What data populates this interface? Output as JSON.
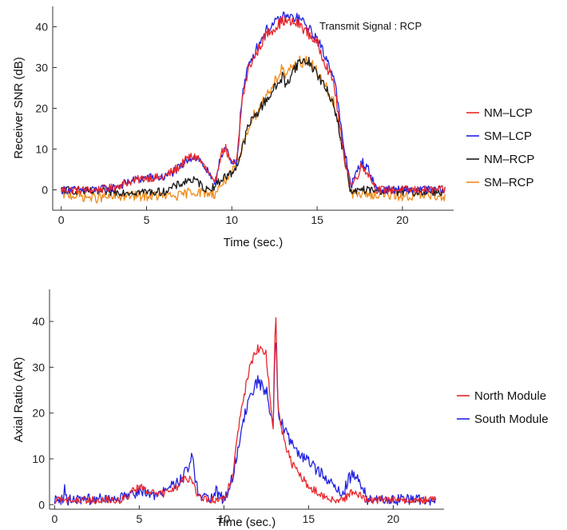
{
  "chart_data": [
    {
      "type": "line",
      "title": "",
      "annotation": "Transmit Signal : RCP",
      "xlabel": "Time (sec.)",
      "ylabel": "Receiver SNR (dB)",
      "xlim": [
        -0.5,
        23
      ],
      "ylim": [
        -5,
        45
      ],
      "xticks": [
        0,
        5,
        10,
        15,
        20
      ],
      "yticks": [
        0,
        10,
        20,
        30,
        40
      ],
      "grid": false,
      "legend_position": "right",
      "series": [
        {
          "name": "NM–LCP",
          "color": "#e8262a",
          "noise": 1.0,
          "points": [
            [
              0,
              0
            ],
            [
              2,
              0
            ],
            [
              3,
              0.5
            ],
            [
              4,
              2
            ],
            [
              5,
              3
            ],
            [
              6,
              3
            ],
            [
              7,
              6
            ],
            [
              7.5,
              8
            ],
            [
              8,
              8
            ],
            [
              8.5,
              5
            ],
            [
              9,
              1
            ],
            [
              9.3,
              8
            ],
            [
              9.6,
              10.5
            ],
            [
              10,
              6
            ],
            [
              10.3,
              7
            ],
            [
              10.6,
              22
            ],
            [
              11,
              30
            ],
            [
              12,
              38
            ],
            [
              13,
              41.5
            ],
            [
              14,
              40.5
            ],
            [
              15,
              36
            ],
            [
              16,
              26
            ],
            [
              16.5,
              10
            ],
            [
              17,
              1
            ],
            [
              17.3,
              3
            ],
            [
              17.6,
              6
            ],
            [
              18,
              4
            ],
            [
              18.5,
              0
            ],
            [
              20,
              0
            ],
            [
              22.5,
              0
            ]
          ]
        },
        {
          "name": "SM–LCP",
          "color": "#2121e0",
          "noise": 1.0,
          "points": [
            [
              0,
              0
            ],
            [
              2,
              0
            ],
            [
              3,
              0.5
            ],
            [
              4,
              2
            ],
            [
              5,
              3
            ],
            [
              6,
              3
            ],
            [
              7,
              5.5
            ],
            [
              7.5,
              8
            ],
            [
              8,
              8
            ],
            [
              8.5,
              5
            ],
            [
              9,
              1
            ],
            [
              9.3,
              8
            ],
            [
              9.6,
              10.5
            ],
            [
              10,
              6
            ],
            [
              10.3,
              7
            ],
            [
              10.6,
              23
            ],
            [
              11,
              31
            ],
            [
              12,
              39
            ],
            [
              13,
              42.5
            ],
            [
              14,
              42
            ],
            [
              15,
              37
            ],
            [
              16,
              28
            ],
            [
              16.5,
              12
            ],
            [
              17,
              1
            ],
            [
              17.3,
              4
            ],
            [
              17.6,
              7
            ],
            [
              18,
              5
            ],
            [
              18.5,
              0
            ],
            [
              20,
              0
            ],
            [
              22.5,
              0
            ]
          ]
        },
        {
          "name": "NM–RCP",
          "color": "#1a1a1a",
          "noise": 1.0,
          "points": [
            [
              0,
              0
            ],
            [
              2,
              -0.5
            ],
            [
              4,
              -0.5
            ],
            [
              6,
              -0.5
            ],
            [
              7,
              1.5
            ],
            [
              7.5,
              2.5
            ],
            [
              8,
              2
            ],
            [
              8.5,
              0
            ],
            [
              9,
              1
            ],
            [
              9.5,
              3
            ],
            [
              10,
              4
            ],
            [
              10.4,
              7
            ],
            [
              11,
              16
            ],
            [
              12,
              22
            ],
            [
              12.7,
              26
            ],
            [
              13,
              28
            ],
            [
              13.2,
              25
            ],
            [
              13.5,
              29
            ],
            [
              14,
              31.5
            ],
            [
              14.5,
              31.5
            ],
            [
              15,
              28.5
            ],
            [
              16,
              21
            ],
            [
              16.5,
              10
            ],
            [
              17,
              -1
            ],
            [
              17.5,
              0
            ],
            [
              18,
              0
            ],
            [
              20,
              -0.5
            ],
            [
              22.5,
              -0.5
            ]
          ]
        },
        {
          "name": "SM–RCP",
          "color": "#f08c1c",
          "noise": 1.2,
          "points": [
            [
              0,
              -1
            ],
            [
              2,
              -2
            ],
            [
              4,
              -1.5
            ],
            [
              6,
              -1.5
            ],
            [
              7,
              -1.5
            ],
            [
              7.5,
              -0.5
            ],
            [
              8,
              -0.5
            ],
            [
              9,
              -1
            ],
            [
              9.5,
              2
            ],
            [
              10,
              4
            ],
            [
              10.4,
              7
            ],
            [
              11,
              16
            ],
            [
              12,
              23
            ],
            [
              12.7,
              28
            ],
            [
              13,
              30
            ],
            [
              13.2,
              27
            ],
            [
              13.5,
              30
            ],
            [
              14,
              31.5
            ],
            [
              14.5,
              31.5
            ],
            [
              15,
              29
            ],
            [
              16,
              21
            ],
            [
              16.5,
              10
            ],
            [
              17,
              -1
            ],
            [
              17.5,
              -1
            ],
            [
              18,
              -1
            ],
            [
              20,
              -1.5
            ],
            [
              22.5,
              -1.5
            ]
          ]
        }
      ]
    },
    {
      "type": "line",
      "title": "",
      "xlabel": "Time (sec.)",
      "ylabel": "Axial Ratio (AR)",
      "xlim": [
        -0.3,
        23
      ],
      "ylim": [
        -1,
        47
      ],
      "xticks": [
        0,
        5,
        10,
        15,
        20
      ],
      "yticks": [
        0,
        10,
        20,
        30,
        40
      ],
      "grid": false,
      "legend_position": "right",
      "series": [
        {
          "name": "North Module",
          "color": "#e8262a",
          "noise": 0.8,
          "points": [
            [
              0,
              1
            ],
            [
              4,
              1
            ],
            [
              5,
              4
            ],
            [
              5.5,
              3
            ],
            [
              6,
              2
            ],
            [
              7,
              3
            ],
            [
              7.5,
              5
            ],
            [
              8,
              6
            ],
            [
              8.5,
              2
            ],
            [
              9,
              1
            ],
            [
              10,
              1
            ],
            [
              10.5,
              6
            ],
            [
              11,
              20
            ],
            [
              11.5,
              30
            ],
            [
              12,
              34
            ],
            [
              12.5,
              33
            ],
            [
              12.8,
              20
            ],
            [
              12.9,
              15
            ],
            [
              13.05,
              44
            ],
            [
              13.2,
              20
            ],
            [
              13.5,
              15
            ],
            [
              14,
              9
            ],
            [
              15,
              4
            ],
            [
              16,
              1.5
            ],
            [
              17,
              1
            ],
            [
              17.3,
              2
            ],
            [
              17.6,
              3
            ],
            [
              18,
              2
            ],
            [
              18.5,
              1
            ],
            [
              20,
              1
            ],
            [
              22.5,
              1
            ]
          ]
        },
        {
          "name": "South Module",
          "color": "#2121e0",
          "noise": 1.2,
          "points": [
            [
              0,
              1
            ],
            [
              0.5,
              1
            ],
            [
              0.6,
              3.5
            ],
            [
              0.7,
              1
            ],
            [
              4,
              1.5
            ],
            [
              5,
              3
            ],
            [
              6,
              2
            ],
            [
              7,
              4
            ],
            [
              7.5,
              6
            ],
            [
              8,
              8
            ],
            [
              8.1,
              12
            ],
            [
              8.3,
              5
            ],
            [
              8.6,
              2
            ],
            [
              9,
              1
            ],
            [
              9.5,
              3
            ],
            [
              10,
              1
            ],
            [
              10.5,
              6
            ],
            [
              11,
              16
            ],
            [
              11.5,
              23
            ],
            [
              12,
              27
            ],
            [
              12.5,
              25
            ],
            [
              12.9,
              17
            ],
            [
              13.05,
              38
            ],
            [
              13.2,
              21
            ],
            [
              13.5,
              17
            ],
            [
              14,
              13
            ],
            [
              15,
              9
            ],
            [
              16,
              6
            ],
            [
              16.5,
              4
            ],
            [
              17,
              2
            ],
            [
              17.3,
              5
            ],
            [
              17.6,
              7
            ],
            [
              18,
              5
            ],
            [
              18.5,
              1
            ],
            [
              20,
              1
            ],
            [
              22.5,
              1
            ]
          ]
        }
      ]
    }
  ]
}
